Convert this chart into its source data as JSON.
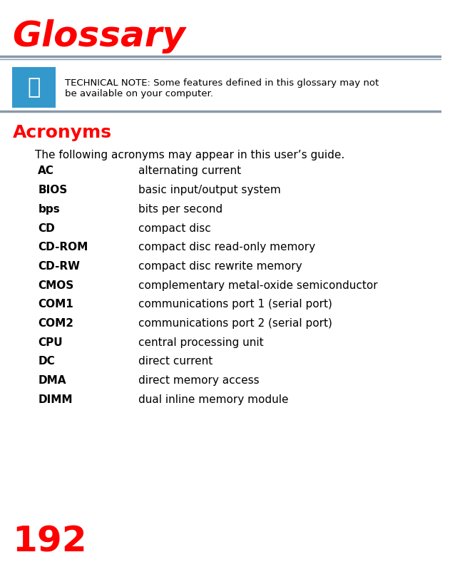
{
  "title": "Glossary",
  "title_color": "#FF0000",
  "title_fontsize": 36,
  "page_number": "192",
  "page_number_color": "#FF0000",
  "page_number_fontsize": 36,
  "section_title": "Acronyms",
  "section_title_color": "#FF0000",
  "section_title_fontsize": 18,
  "intro_text": "The following acronyms may appear in this user’s guide.",
  "tech_note_bold": "TECHNICAL NOTE: ",
  "tech_note_text": "Some features defined in this glossary may not\nbe available on your computer.",
  "separator_color": "#8899AA",
  "note_bg_color": "#3399CC",
  "bg_color": "#FFFFFF",
  "acronyms": [
    [
      "AC",
      "alternating current"
    ],
    [
      "BIOS",
      "basic input/output system"
    ],
    [
      "bps",
      "bits per second"
    ],
    [
      "CD",
      "compact disc"
    ],
    [
      "CD-ROM",
      "compact disc read-only memory"
    ],
    [
      "CD-RW",
      "compact disc rewrite memory"
    ],
    [
      "CMOS",
      "complementary metal-oxide semiconductor"
    ],
    [
      "COM1",
      "communications port 1 (serial port)"
    ],
    [
      "COM2",
      "communications port 2 (serial port)"
    ],
    [
      "CPU",
      "central processing unit"
    ],
    [
      "DC",
      "direct current"
    ],
    [
      "DMA",
      "direct memory access"
    ],
    [
      "DIMM",
      "dual inline memory module"
    ]
  ],
  "acronym_fontsize": 11,
  "text_color": "#000000"
}
